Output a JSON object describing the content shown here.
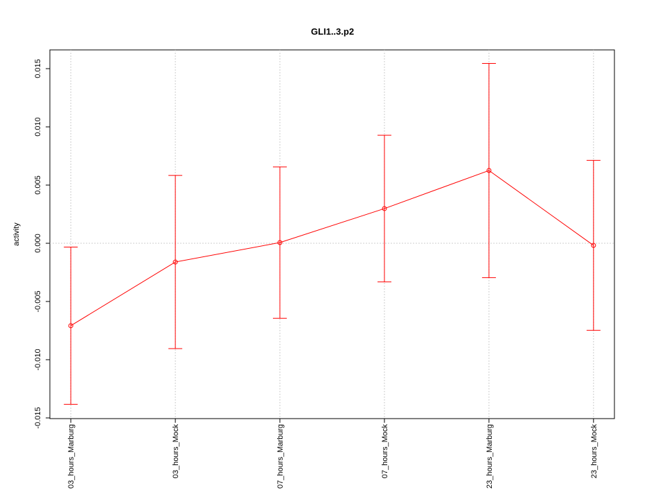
{
  "chart_data": {
    "type": "line",
    "title": "GLI1..3.p2",
    "y_label": "activity",
    "categories": [
      "03_hours_Marburg",
      "03_hours_Mock",
      "07_hours_Marburg",
      "07_hours_Mock",
      "23_hours_Marburg",
      "23_hours_Mock"
    ],
    "series": [
      {
        "color": "#ff0000",
        "values": [
          -0.00708,
          -0.00161,
          6e-05,
          0.00298,
          0.00625,
          -0.00018
        ],
        "errors": [
          0.00675,
          0.00744,
          0.0065,
          0.0063,
          0.0092,
          0.0073
        ]
      }
    ],
    "ylim": [
      -0.01506,
      0.01661
    ],
    "yticks": [
      -0.015,
      {
        "value": -0.01,
        "label": "-0.010"
      },
      -0.005,
      {
        "value": 0,
        "label": "0.000"
      },
      0.005,
      {
        "value": 0.01,
        "label": "0.010"
      },
      0.015
    ],
    "hline": 0,
    "grid": true
  }
}
